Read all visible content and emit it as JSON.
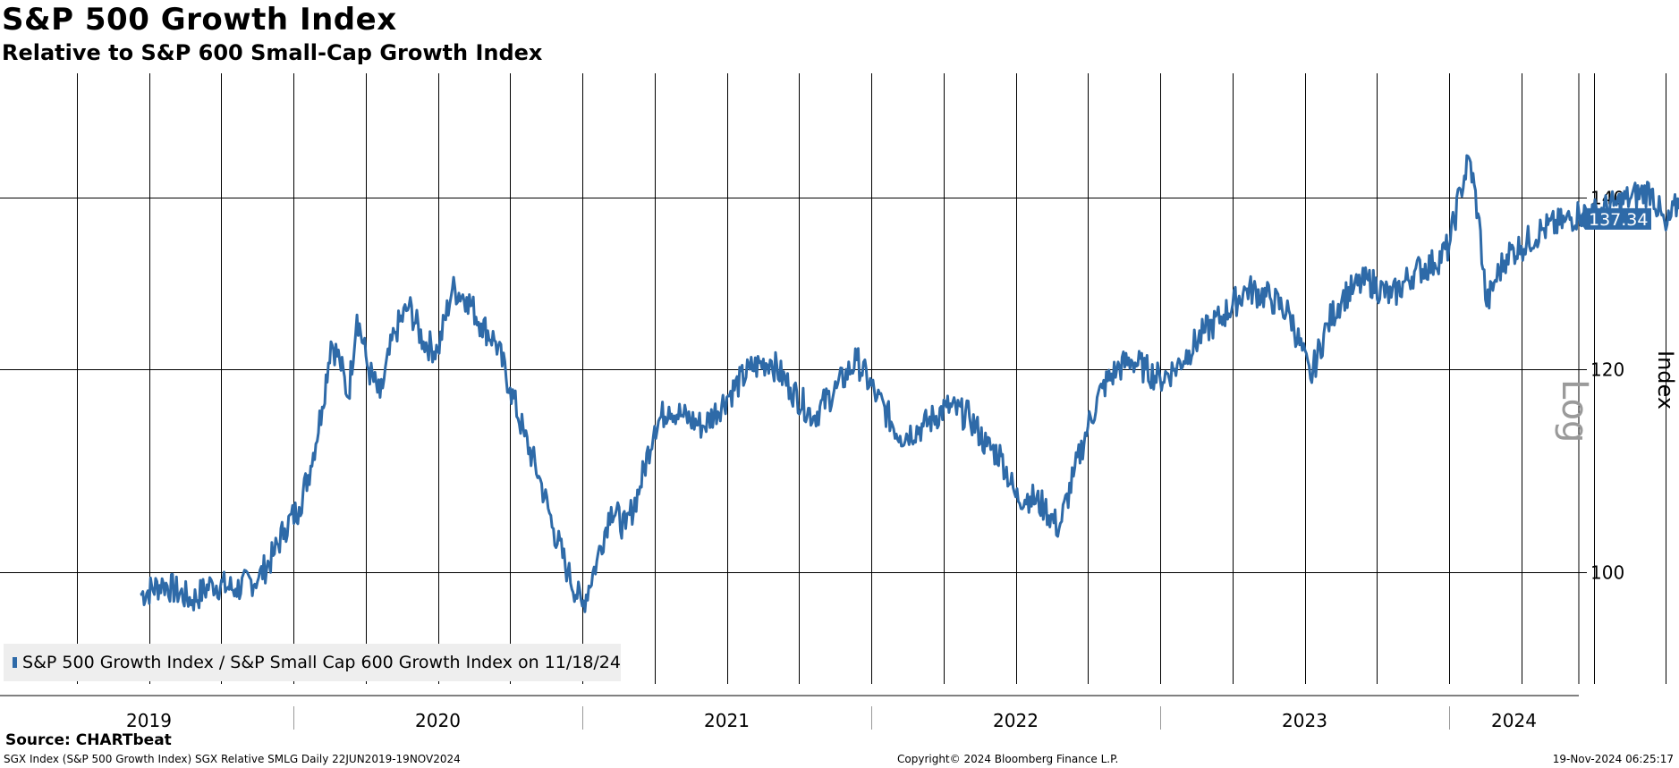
{
  "chart_data": {
    "type": "line",
    "title": "S&P 500 Growth Index",
    "subtitle": "Relative to S&P 600 Small-Cap Growth Index",
    "y_scale_label": "Log",
    "ylabel": "Index",
    "ylim": [
      91,
      154
    ],
    "y_ticks": [
      100,
      120,
      140
    ],
    "x_tick_labels": [
      "2019",
      "2020",
      "2021",
      "2022",
      "2023",
      "2024"
    ],
    "last_value_label": "137.34",
    "last_value": 137.34,
    "legend": "S&P 500 Growth Index / S&P Small Cap 600 Growth Index on 11/18/24",
    "series": [
      {
        "name": "S&P 500 Growth Index / S&P Small Cap 600 Growth Index",
        "color": "#2e6aa8",
        "x": [
          2019.47,
          2019.55,
          2019.65,
          2019.72,
          2019.8,
          2019.88,
          2019.93,
          2019.97,
          2020.02,
          2020.06,
          2020.1,
          2020.13,
          2020.16,
          2020.19,
          2020.22,
          2020.26,
          2020.3,
          2020.35,
          2020.4,
          2020.45,
          2020.5,
          2020.55,
          2020.6,
          2020.65,
          2020.7,
          2020.75,
          2020.8,
          2020.85,
          2020.9,
          2020.95,
          2021.0,
          2021.05,
          2021.1,
          2021.15,
          2021.2,
          2021.25,
          2021.3,
          2021.35,
          2021.42,
          2021.5,
          2021.58,
          2021.65,
          2021.72,
          2021.8,
          2021.88,
          2021.95,
          2022.02,
          2022.1,
          2022.18,
          2022.26,
          2022.34,
          2022.4,
          2022.45,
          2022.5,
          2022.55,
          2022.6,
          2022.65,
          2022.7,
          2022.75,
          2022.8,
          2022.85,
          2022.9,
          2022.95,
          2023.0,
          2023.05,
          2023.1,
          2023.15,
          2023.22,
          2023.3,
          2023.38,
          2023.45,
          2023.52,
          2023.58,
          2023.63,
          2023.67,
          2023.72,
          2023.8,
          2023.88,
          2023.95,
          2024.0,
          2024.04,
          2024.07,
          2024.1,
          2024.13,
          2024.16,
          2024.2,
          2024.25,
          2024.32,
          2024.4,
          2024.45,
          2024.5,
          2024.57,
          2024.63,
          2024.7,
          2024.75,
          2024.8,
          2024.85,
          2024.88
        ],
        "values": [
          98,
          99,
          97.5,
          99,
          98.5,
          99.5,
          101.5,
          104,
          106,
          110,
          116,
          123,
          121,
          117,
          126,
          120,
          117,
          124,
          127,
          123,
          122,
          129,
          128,
          125,
          123,
          118,
          113,
          109,
          104,
          100,
          97,
          101,
          106,
          104,
          108,
          114,
          116,
          115,
          114,
          117,
          120,
          121,
          118,
          115,
          118,
          121,
          117,
          113,
          114,
          116,
          115,
          112,
          111,
          107,
          107,
          106,
          104,
          109,
          114,
          118,
          120,
          121,
          120,
          119,
          120,
          122,
          124,
          126,
          129,
          128,
          126,
          119,
          125,
          128,
          129,
          130,
          128,
          131,
          132,
          134,
          141,
          145,
          138,
          127,
          130,
          133,
          134,
          136,
          137,
          138,
          138,
          139,
          140,
          141,
          136,
          140,
          136,
          137.34
        ]
      }
    ]
  },
  "footer": {
    "source": "Source: CHARTbeat",
    "left": "SGX Index (S&P 500 Growth Index) SGX Relative SMLG  Daily 22JUN2019-19NOV2024",
    "center": "Copyright© 2024 Bloomberg Finance L.P.",
    "right": "19-Nov-2024 06:25:17"
  }
}
